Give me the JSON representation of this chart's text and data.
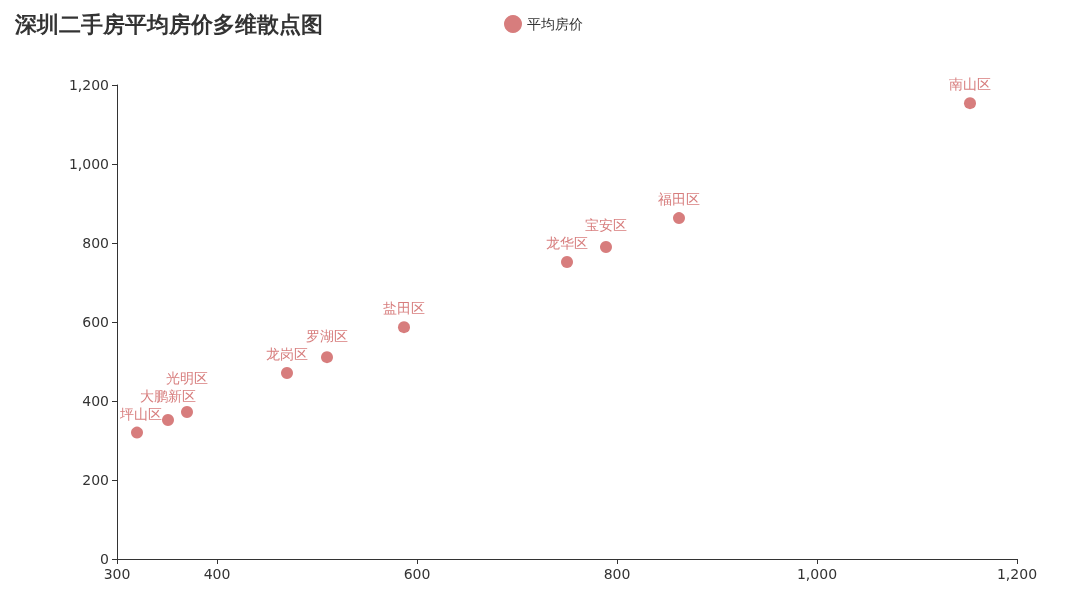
{
  "chart_data": {
    "type": "scatter",
    "title": "深圳二手房平均房价多维散点图",
    "x": [
      320,
      351,
      370,
      470,
      510,
      587,
      750,
      789,
      862,
      1153
    ],
    "series": [
      {
        "name": "平均房价",
        "color": "#cd5c5c",
        "values": [
          320,
          352,
          372,
          471,
          511,
          587,
          752,
          790,
          863,
          1154
        ]
      }
    ],
    "annotations": [
      {
        "text": "坪山区",
        "x": 320,
        "y": 320
      },
      {
        "text": "大鹏新区",
        "x": 351,
        "y": 352
      },
      {
        "text": "光明区",
        "x": 370,
        "y": 372
      },
      {
        "text": "龙岗区",
        "x": 470,
        "y": 471
      },
      {
        "text": "罗湖区",
        "x": 510,
        "y": 511
      },
      {
        "text": "盐田区",
        "x": 587,
        "y": 587
      },
      {
        "text": "龙华区",
        "x": 750,
        "y": 752
      },
      {
        "text": "宝安区",
        "x": 789,
        "y": 790
      },
      {
        "text": "福田区",
        "x": 862,
        "y": 863
      },
      {
        "text": "南山区",
        "x": 1153,
        "y": 1154
      }
    ],
    "xlim": [
      300,
      1200
    ],
    "xticks": [
      300,
      400,
      600,
      800,
      {
        "value": 1000,
        "label": "1,000"
      },
      {
        "value": 1200,
        "label": "1,200"
      }
    ],
    "ylim": [
      0,
      1200
    ],
    "yticks": [
      0,
      200,
      400,
      600,
      800,
      {
        "value": 1000,
        "label": "1,000"
      },
      {
        "value": 1200,
        "label": "1,200"
      }
    ],
    "legend": "top",
    "grid": false,
    "marker": "circle"
  }
}
